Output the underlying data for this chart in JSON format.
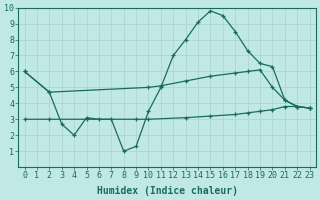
{
  "line1_x": [
    0,
    2,
    3,
    4,
    5,
    6,
    7,
    8,
    9,
    10,
    11,
    12,
    13,
    14,
    15,
    16,
    17,
    18,
    19,
    20,
    21,
    22,
    23
  ],
  "line1_y": [
    6.0,
    4.7,
    2.7,
    2.0,
    3.1,
    3.0,
    3.0,
    1.0,
    1.3,
    3.5,
    5.0,
    7.0,
    8.0,
    9.1,
    9.8,
    9.5,
    8.5,
    7.3,
    6.5,
    6.3,
    4.2,
    3.8,
    3.7
  ],
  "line2_x": [
    0,
    2,
    10,
    11,
    13,
    15,
    17,
    18,
    19,
    20,
    21,
    22,
    23
  ],
  "line2_y": [
    6.0,
    4.7,
    5.0,
    5.1,
    5.4,
    5.7,
    5.9,
    6.0,
    6.1,
    5.0,
    4.2,
    3.8,
    3.7
  ],
  "line3_x": [
    0,
    2,
    5,
    9,
    10,
    13,
    15,
    17,
    18,
    19,
    20,
    21,
    22,
    23
  ],
  "line3_y": [
    3.0,
    3.0,
    3.0,
    3.0,
    3.0,
    3.1,
    3.2,
    3.3,
    3.4,
    3.5,
    3.6,
    3.8,
    3.8,
    3.7
  ],
  "color": "#1a6b5e",
  "bg_color": "#c0e8e4",
  "grid_color": "#b0d8d4",
  "xlabel": "Humidex (Indice chaleur)",
  "xlim": [
    -0.5,
    23.5
  ],
  "ylim": [
    0,
    10
  ],
  "xticks": [
    0,
    1,
    2,
    3,
    4,
    5,
    6,
    7,
    8,
    9,
    10,
    11,
    12,
    13,
    14,
    15,
    16,
    17,
    18,
    19,
    20,
    21,
    22,
    23
  ],
  "yticks": [
    1,
    2,
    3,
    4,
    5,
    6,
    7,
    8,
    9,
    10
  ],
  "xlabel_fontsize": 7.0,
  "tick_fontsize": 6.0
}
